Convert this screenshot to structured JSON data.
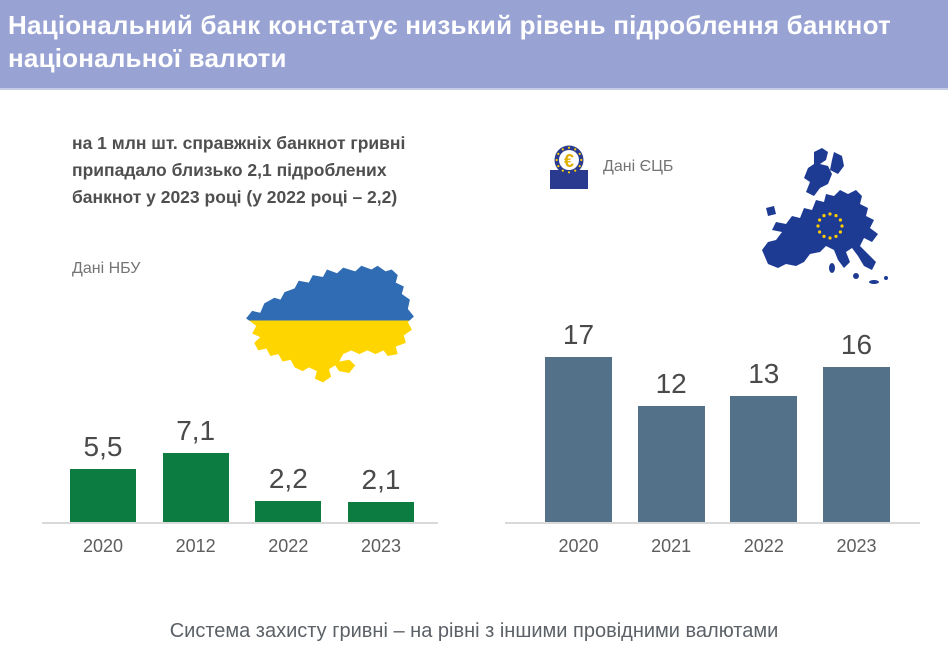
{
  "page": {
    "background": "#ffffff"
  },
  "header": {
    "title": "Національний банк констатує низький рівень підроблення банкнот\nнаціональної валюти",
    "background": "#98a2d3",
    "text_color": "#ffffff"
  },
  "left_panel": {
    "subtitle": "на 1 млн шт. справжніх банкнот гривні\nприпадало близько 2,1 підроблених\nбанкнот у 2023 році (у 2022 році – 2,2)",
    "source_label": "Дані НБУ",
    "map_icon": "ukraine-map",
    "flag_blue": "#2f6cb3",
    "flag_yellow": "#ffd500"
  },
  "right_panel": {
    "source_label": "Дані ЄЦБ",
    "ecb_symbol": "€",
    "map_icon": "eu-map",
    "map_color": "#1e3b94",
    "star_color": "#ffcc00"
  },
  "footer": {
    "caption": "Система захисту гривні – на рівні з іншими провідними валютами"
  },
  "chart_data": [
    {
      "type": "bar",
      "source": "Дані НБУ",
      "categories": [
        "2020",
        "2012",
        "2022",
        "2023"
      ],
      "values": [
        5.5,
        7.1,
        2.2,
        2.1
      ],
      "display_values": [
        "5,5",
        "7,1",
        "2,2",
        "2,1"
      ],
      "bar_color": "#0c7c41",
      "value_label_color": "#4a4a4a",
      "ylim": [
        0,
        18
      ],
      "grid": false,
      "legend": false
    },
    {
      "type": "bar",
      "source": "Дані ЄЦБ",
      "categories": [
        "2020",
        "2021",
        "2022",
        "2023"
      ],
      "values": [
        17,
        12,
        13,
        16
      ],
      "display_values": [
        "17",
        "12",
        "13",
        "16"
      ],
      "bar_color": "#53728a",
      "value_label_color": "#4a4a4a",
      "ylim": [
        0,
        18
      ],
      "grid": false,
      "legend": false
    }
  ]
}
